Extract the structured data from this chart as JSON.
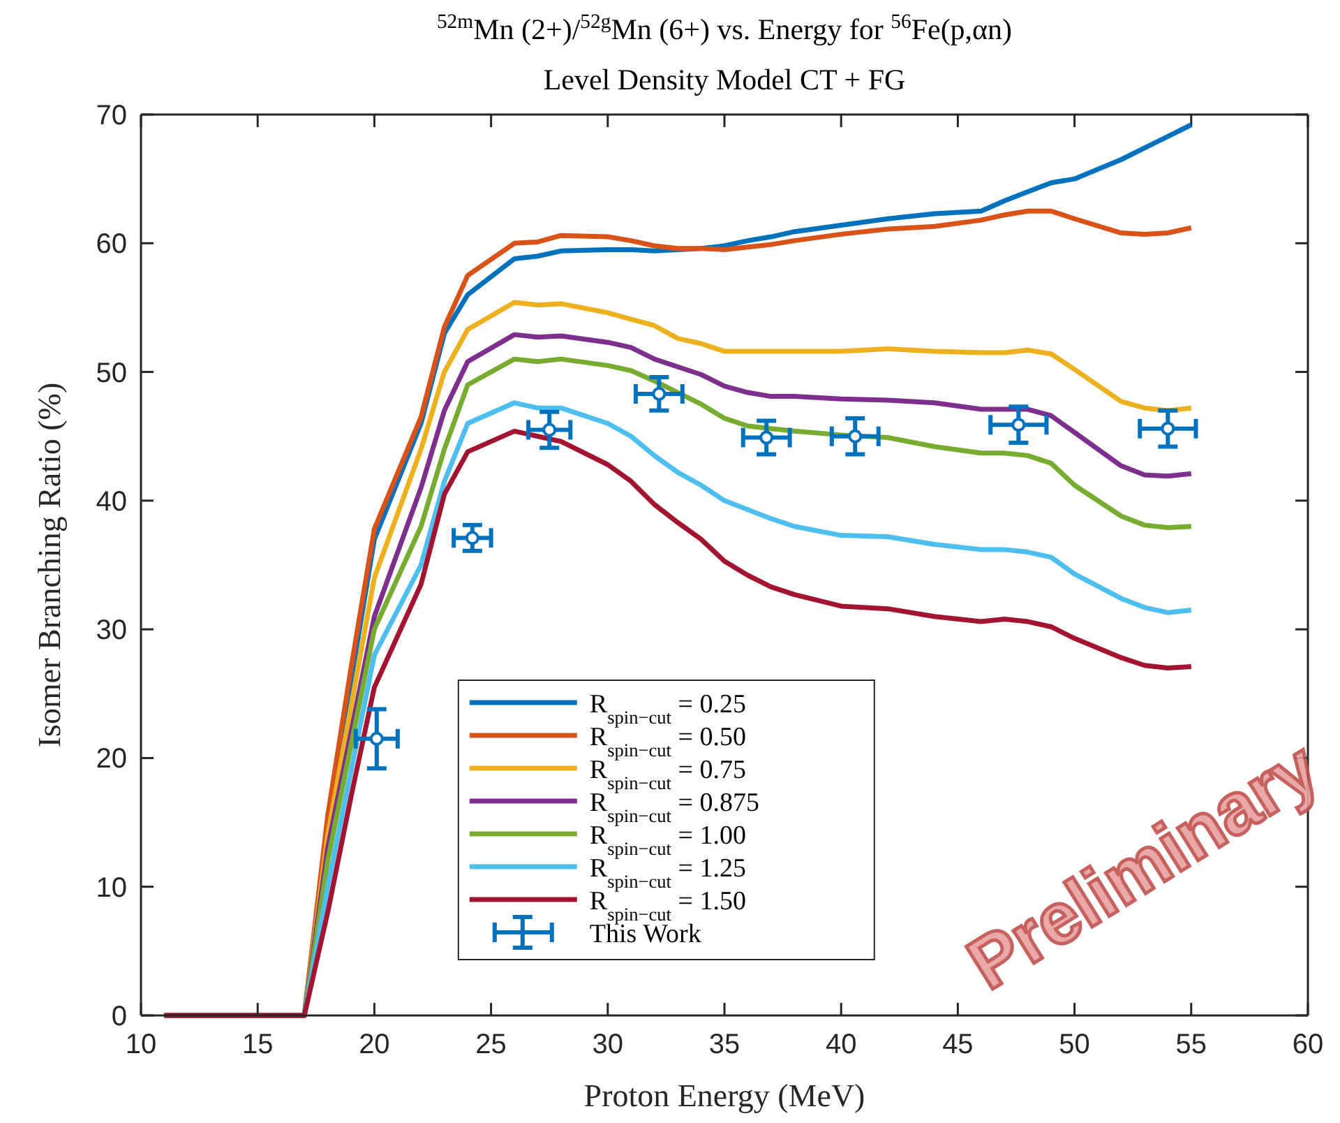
{
  "chart_data": {
    "type": "line",
    "title": "$^{52m}$Mn (2+)/$^{52g}$Mn (6+) vs. Energy for $^{56}$Fe(p,αn)",
    "subtitle": "Level Density Model CT + FG",
    "xlabel": "Proton Energy (MeV)",
    "ylabel": "Isomer Branching Ratio (%)",
    "x": [
      11,
      17,
      18,
      19,
      20,
      22,
      23,
      24,
      26,
      27,
      28,
      30,
      31,
      32,
      33,
      34,
      35,
      36,
      37,
      38,
      40,
      42,
      44,
      46,
      47,
      48,
      49,
      50,
      52,
      53,
      54,
      55
    ],
    "series": [
      {
        "name": "R$_{spin−cut}$ = 0.25",
        "color": "#0072bd",
        "values": [
          0,
          0,
          15,
          26,
          37,
          46,
          53,
          56,
          58.8,
          59,
          59.4,
          59.5,
          59.5,
          59.4,
          59.5,
          59.6,
          59.8,
          60.2,
          60.5,
          60.9,
          61.4,
          61.9,
          62.3,
          62.5,
          63.3,
          64,
          64.7,
          65,
          66.5,
          67.4,
          68.3,
          69.2
        ]
      },
      {
        "name": "R$_{spin−cut}$ = 0.50",
        "color": "#d95319",
        "values": [
          0,
          0,
          15.5,
          27,
          37.8,
          46.5,
          53.5,
          57.5,
          60,
          60.1,
          60.6,
          60.5,
          60.2,
          59.8,
          59.6,
          59.6,
          59.5,
          59.7,
          59.9,
          60.2,
          60.7,
          61.1,
          61.3,
          61.8,
          62.2,
          62.5,
          62.5,
          61.9,
          60.8,
          60.7,
          60.8,
          61.2
        ]
      },
      {
        "name": "R$_{spin−cut}$ = 0.75",
        "color": "#edb120",
        "values": [
          0,
          0,
          14,
          24,
          34,
          44,
          50,
          53.3,
          55.4,
          55.2,
          55.3,
          54.6,
          54.1,
          53.6,
          52.6,
          52.2,
          51.6,
          51.6,
          51.6,
          51.6,
          51.6,
          51.8,
          51.6,
          51.5,
          51.5,
          51.7,
          51.4,
          50.2,
          47.7,
          47.2,
          47,
          47.2
        ]
      },
      {
        "name": "R$_{spin−cut}$ = 0.875",
        "color": "#7e2f8e",
        "values": [
          0,
          0,
          13,
          22,
          31,
          41,
          47,
          50.8,
          52.9,
          52.7,
          52.8,
          52.3,
          51.9,
          51,
          50.4,
          49.8,
          48.9,
          48.4,
          48.1,
          48.1,
          47.9,
          47.8,
          47.6,
          47.1,
          47.1,
          47.1,
          46.6,
          45.3,
          42.7,
          42,
          41.9,
          42.1
        ]
      },
      {
        "name": "R$_{spin−cut}$ = 1.00",
        "color": "#77ac30",
        "values": [
          0,
          0,
          12,
          21,
          30,
          38,
          44,
          49,
          51,
          50.8,
          51,
          50.5,
          50.1,
          49.3,
          48.4,
          47.5,
          46.4,
          45.8,
          45.6,
          45.4,
          45.1,
          44.9,
          44.2,
          43.7,
          43.7,
          43.5,
          42.9,
          41.2,
          38.8,
          38.1,
          37.9,
          38
        ]
      },
      {
        "name": "R$_{spin−cut}$ = 1.25",
        "color": "#4dbeee",
        "values": [
          0,
          0,
          10,
          19,
          28,
          35,
          41.5,
          46,
          47.6,
          47.2,
          47.2,
          46,
          45,
          43.5,
          42.2,
          41.2,
          40,
          39.3,
          38.6,
          38,
          37.3,
          37.2,
          36.6,
          36.2,
          36.2,
          36,
          35.6,
          34.3,
          32.4,
          31.7,
          31.3,
          31.5
        ]
      },
      {
        "name": "R$_{spin−cut}$ = 1.50",
        "color": "#a2142f",
        "values": [
          0,
          0,
          8,
          17,
          25.5,
          33.5,
          40.5,
          43.8,
          45.4,
          45,
          44.6,
          42.8,
          41.5,
          39.7,
          38.3,
          37,
          35.3,
          34.2,
          33.3,
          32.7,
          31.8,
          31.6,
          31,
          30.6,
          30.8,
          30.6,
          30.2,
          29.3,
          27.8,
          27.2,
          27,
          27.1
        ]
      },
      {
        "name": "This Work",
        "type": "scatter",
        "marker": "circle",
        "color": "#0072bd",
        "x": [
          20.1,
          24.2,
          27.5,
          32.2,
          36.8,
          40.6,
          47.6,
          54
        ],
        "values": [
          21.5,
          37.1,
          45.5,
          48.3,
          44.9,
          45,
          45.9,
          45.6
        ],
        "errors": [
          2.3,
          1,
          1.4,
          1.3,
          1.3,
          1.4,
          1.4,
          1.4
        ],
        "xerrors": [
          0.9,
          0.8,
          0.9,
          1,
          1,
          1,
          1.2,
          1.2
        ]
      }
    ],
    "xlim": [
      10,
      60
    ],
    "xticks": [
      10,
      15,
      20,
      25,
      30,
      35,
      40,
      45,
      50,
      55,
      60
    ],
    "ylim": [
      0,
      70
    ],
    "yticks": [
      0,
      10,
      20,
      30,
      40,
      50,
      60,
      70
    ],
    "grid": false,
    "legend": "bottom",
    "line_style": "solid",
    "annotations": [
      {
        "text": "Preliminary"
      }
    ]
  }
}
